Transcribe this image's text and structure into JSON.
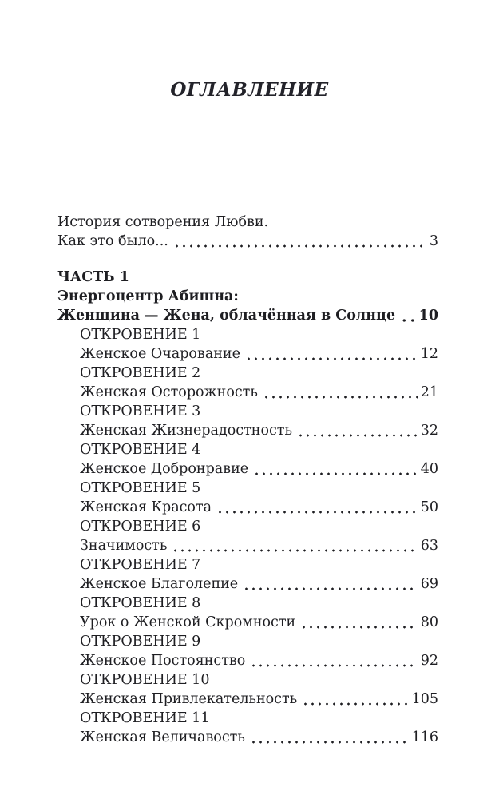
{
  "toc": {
    "title": "ОГЛАВЛЕНИЕ",
    "entries": [
      {
        "text": "История сотворения Любви.",
        "page": "",
        "bold": false,
        "indent": 0,
        "gap": false
      },
      {
        "text": "Как это было...",
        "page": "3",
        "bold": false,
        "indent": 0,
        "gap": false
      },
      {
        "text": "ЧАСТЬ 1",
        "page": "",
        "bold": true,
        "indent": 0,
        "gap": true
      },
      {
        "text": "Энергоцентр Абишна:",
        "page": "",
        "bold": true,
        "indent": 0,
        "gap": false
      },
      {
        "text": "Женщина — Жена, облачённая в Солнце",
        "page": "10",
        "bold": true,
        "indent": 0,
        "gap": false
      },
      {
        "text": "ОТКРОВЕНИЕ 1",
        "page": "",
        "bold": false,
        "indent": 1,
        "gap": false
      },
      {
        "text": "Женское Очарование",
        "page": "12",
        "bold": false,
        "indent": 1,
        "gap": false
      },
      {
        "text": "ОТКРОВЕНИЕ 2",
        "page": "",
        "bold": false,
        "indent": 1,
        "gap": false
      },
      {
        "text": "Женская Осторожность",
        "page": "21",
        "bold": false,
        "indent": 1,
        "gap": false
      },
      {
        "text": "ОТКРОВЕНИЕ 3",
        "page": "",
        "bold": false,
        "indent": 1,
        "gap": false
      },
      {
        "text": "Женская Жизнерадостность",
        "page": "32",
        "bold": false,
        "indent": 1,
        "gap": false
      },
      {
        "text": "ОТКРОВЕНИЕ 4",
        "page": "",
        "bold": false,
        "indent": 1,
        "gap": false
      },
      {
        "text": "Женское Добронравие",
        "page": "40",
        "bold": false,
        "indent": 1,
        "gap": false
      },
      {
        "text": "ОТКРОВЕНИЕ 5",
        "page": "",
        "bold": false,
        "indent": 1,
        "gap": false
      },
      {
        "text": "Женская Красота",
        "page": "50",
        "bold": false,
        "indent": 1,
        "gap": false
      },
      {
        "text": "ОТКРОВЕНИЕ 6",
        "page": "",
        "bold": false,
        "indent": 1,
        "gap": false
      },
      {
        "text": "Значимость",
        "page": "63",
        "bold": false,
        "indent": 1,
        "gap": false
      },
      {
        "text": "ОТКРОВЕНИЕ 7",
        "page": "",
        "bold": false,
        "indent": 1,
        "gap": false
      },
      {
        "text": "Женское Благолепие",
        "page": "69",
        "bold": false,
        "indent": 1,
        "gap": false
      },
      {
        "text": "ОТКРОВЕНИЕ 8",
        "page": "",
        "bold": false,
        "indent": 1,
        "gap": false
      },
      {
        "text": "Урок о Женской Скромности",
        "page": "80",
        "bold": false,
        "indent": 1,
        "gap": false
      },
      {
        "text": "ОТКРОВЕНИЕ 9",
        "page": "",
        "bold": false,
        "indent": 1,
        "gap": false
      },
      {
        "text": "Женское Постоянство",
        "page": "92",
        "bold": false,
        "indent": 1,
        "gap": false
      },
      {
        "text": "ОТКРОВЕНИЕ 10",
        "page": "",
        "bold": false,
        "indent": 1,
        "gap": false
      },
      {
        "text": "Женская Привлекательность",
        "page": "105",
        "bold": false,
        "indent": 1,
        "gap": false
      },
      {
        "text": "ОТКРОВЕНИЕ 11",
        "page": "",
        "bold": false,
        "indent": 1,
        "gap": false
      },
      {
        "text": "Женская Величавость",
        "page": "116",
        "bold": false,
        "indent": 1,
        "gap": false
      }
    ],
    "text_color": "#1e1e22"
  }
}
